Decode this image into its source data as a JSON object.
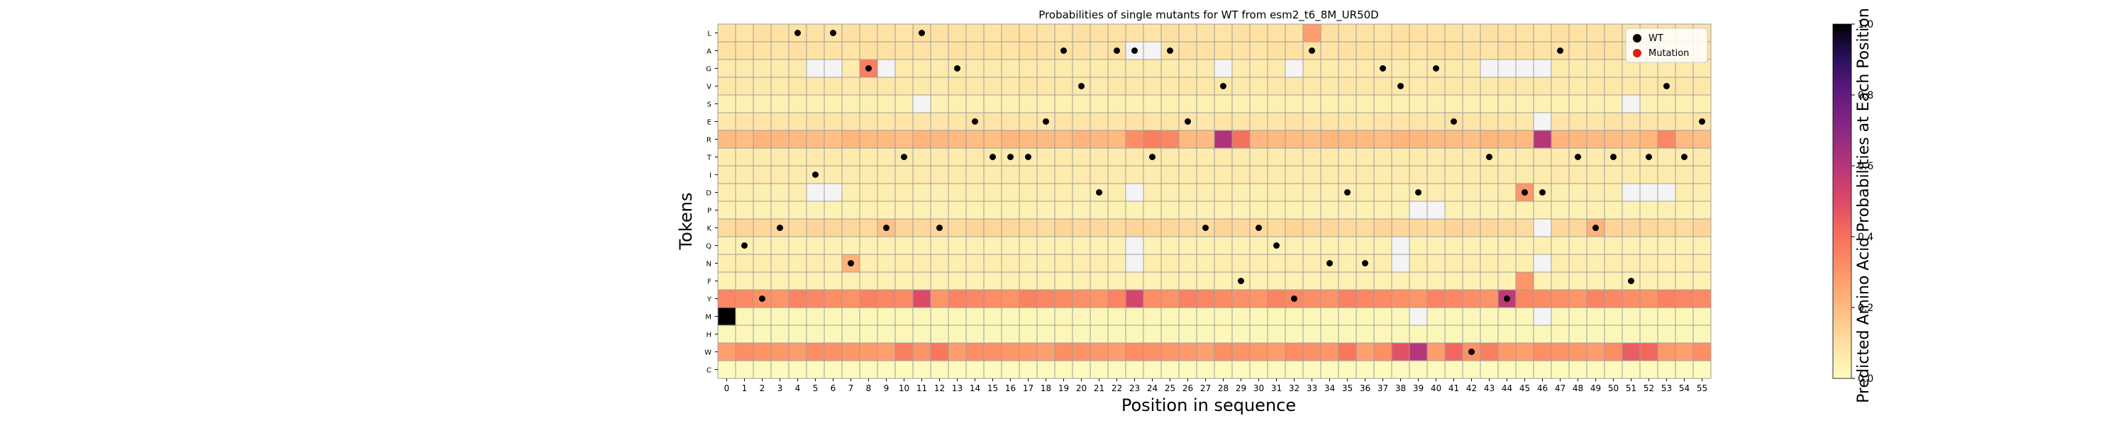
{
  "chart_data": {
    "type": "heatmap",
    "title": "Probabilities of single mutants for WT from esm2_t6_8M_UR50D",
    "xlabel": "Position in sequence",
    "ylabel": "Tokens",
    "colorbar_label": "Predicted Amino Acid Probabilities at Each Position",
    "colorbar_ticks": [
      "0.0",
      "0.2",
      "0.4",
      "0.6",
      "0.8",
      "1.0"
    ],
    "colorbar_range": [
      0,
      1
    ],
    "colormap": "magma_r",
    "x_categories": [
      "0",
      "1",
      "2",
      "3",
      "4",
      "5",
      "6",
      "7",
      "8",
      "9",
      "10",
      "11",
      "12",
      "13",
      "14",
      "15",
      "16",
      "17",
      "18",
      "19",
      "20",
      "21",
      "22",
      "23",
      "24",
      "25",
      "26",
      "27",
      "28",
      "29",
      "30",
      "31",
      "32",
      "33",
      "34",
      "35",
      "36",
      "37",
      "38",
      "39",
      "40",
      "41",
      "42",
      "43",
      "44",
      "45",
      "46",
      "47",
      "48",
      "49",
      "50",
      "51",
      "52",
      "53",
      "54",
      "55"
    ],
    "y_categories": [
      "L",
      "A",
      "G",
      "V",
      "S",
      "E",
      "R",
      "T",
      "I",
      "D",
      "P",
      "K",
      "Q",
      "N",
      "F",
      "Y",
      "M",
      "H",
      "W",
      "C"
    ],
    "wt_sequence": [
      "M",
      "Q",
      "Y",
      "K",
      "L",
      "I",
      "L",
      "N",
      "G",
      "K",
      "T",
      "L",
      "K",
      "G",
      "E",
      "T",
      "T",
      "T",
      "E",
      "A",
      "V",
      "D",
      "A",
      "A",
      "T",
      "A",
      "E",
      "K",
      "V",
      "F",
      "K",
      "Q",
      "Y",
      "A",
      "N",
      "D",
      "N",
      "G",
      "V",
      "D",
      "G",
      "E",
      "W",
      "T",
      "Y",
      "D",
      "D",
      "A",
      "T",
      "K",
      "T",
      "F",
      "T",
      "V",
      "T",
      "E"
    ],
    "mutations": [],
    "base_probs": {
      "L": 0.09,
      "A": 0.09,
      "G": 0.06,
      "V": 0.07,
      "S": 0.04,
      "E": 0.08,
      "R": 0.2,
      "T": 0.06,
      "I": 0.06,
      "D": 0.05,
      "P": 0.04,
      "K": 0.12,
      "Q": 0.04,
      "N": 0.05,
      "F": 0.04,
      "Y": 0.33,
      "M": 0.02,
      "H": 0.02,
      "W": 0.3,
      "C": 0.01
    },
    "special_cells": [
      {
        "x": 0,
        "y": "M",
        "v": 1.0
      },
      {
        "x": 28,
        "y": "R",
        "v": 0.62
      },
      {
        "x": 46,
        "y": "R",
        "v": 0.6
      },
      {
        "x": 29,
        "y": "R",
        "v": 0.4
      },
      {
        "x": 23,
        "y": "Y",
        "v": 0.52
      },
      {
        "x": 44,
        "y": "Y",
        "v": 0.58
      },
      {
        "x": 11,
        "y": "Y",
        "v": 0.5
      },
      {
        "x": 39,
        "y": "W",
        "v": 0.6
      },
      {
        "x": 38,
        "y": "W",
        "v": 0.48
      },
      {
        "x": 51,
        "y": "W",
        "v": 0.45
      },
      {
        "x": 52,
        "y": "W",
        "v": 0.42
      },
      {
        "x": 8,
        "y": "G",
        "v": 0.36
      },
      {
        "x": 33,
        "y": "L",
        "v": 0.28
      },
      {
        "x": 45,
        "y": "D",
        "v": 0.3
      },
      {
        "x": 45,
        "y": "F",
        "v": 0.3
      },
      {
        "x": 7,
        "y": "N",
        "v": 0.22
      },
      {
        "x": 49,
        "y": "K",
        "v": 0.22
      },
      {
        "x": 9,
        "y": "K",
        "v": 0.18
      },
      {
        "x": 53,
        "y": "R",
        "v": 0.34
      },
      {
        "x": 23,
        "y": "R",
        "v": 0.32
      },
      {
        "x": 25,
        "y": "R",
        "v": 0.34
      },
      {
        "x": 24,
        "y": "R",
        "v": 0.36
      },
      {
        "x": 10,
        "y": "W",
        "v": 0.36
      },
      {
        "x": 12,
        "y": "W",
        "v": 0.38
      },
      {
        "x": 35,
        "y": "W",
        "v": 0.38
      },
      {
        "x": 41,
        "y": "W",
        "v": 0.42
      },
      {
        "x": 43,
        "y": "W",
        "v": 0.36
      }
    ],
    "near_zero_cells": [
      {
        "x": 5,
        "y": "G"
      },
      {
        "x": 6,
        "y": "G"
      },
      {
        "x": 9,
        "y": "G"
      },
      {
        "x": 23,
        "y": "A"
      },
      {
        "x": 24,
        "y": "A"
      },
      {
        "x": 28,
        "y": "G"
      },
      {
        "x": 32,
        "y": "G"
      },
      {
        "x": 43,
        "y": "G"
      },
      {
        "x": 44,
        "y": "G"
      },
      {
        "x": 45,
        "y": "G"
      },
      {
        "x": 46,
        "y": "G"
      },
      {
        "x": 11,
        "y": "S"
      },
      {
        "x": 51,
        "y": "S"
      },
      {
        "x": 5,
        "y": "D"
      },
      {
        "x": 6,
        "y": "D"
      },
      {
        "x": 23,
        "y": "D"
      },
      {
        "x": 46,
        "y": "E"
      },
      {
        "x": 46,
        "y": "K"
      },
      {
        "x": 46,
        "y": "N"
      },
      {
        "x": 46,
        "y": "M"
      },
      {
        "x": 39,
        "y": "M"
      },
      {
        "x": 23,
        "y": "Q"
      },
      {
        "x": 23,
        "y": "N"
      },
      {
        "x": 38,
        "y": "Q"
      },
      {
        "x": 38,
        "y": "N"
      },
      {
        "x": 39,
        "y": "P"
      },
      {
        "x": 40,
        "y": "P"
      },
      {
        "x": 51,
        "y": "D"
      },
      {
        "x": 52,
        "y": "D"
      },
      {
        "x": 53,
        "y": "D"
      }
    ],
    "legend": [
      {
        "label": "WT",
        "color": "#000000"
      },
      {
        "label": "Mutation",
        "color": "#e31a1c"
      }
    ],
    "legend_position": "top-right",
    "grid": true
  }
}
